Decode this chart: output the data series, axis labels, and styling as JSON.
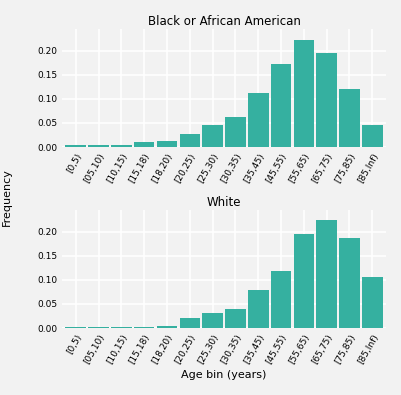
{
  "categories": [
    "[0,5)",
    "[05,10)",
    "[10,15)",
    "[15,18)",
    "[18,20)",
    "[20,25)",
    "[25,30)",
    "[30,35)",
    "[35,45)",
    "[45,55)",
    "[55,65)",
    "[65,75)",
    "[75,85)",
    "[85,Inf)"
  ],
  "black_values": [
    0.005,
    0.005,
    0.005,
    0.01,
    0.012,
    0.028,
    0.045,
    0.062,
    0.112,
    0.172,
    0.222,
    0.195,
    0.12,
    0.046
  ],
  "white_values": [
    0.003,
    0.003,
    0.002,
    0.003,
    0.005,
    0.02,
    0.032,
    0.04,
    0.078,
    0.118,
    0.195,
    0.225,
    0.188,
    0.105
  ],
  "bar_color": "#35b0a0",
  "background_color": "#f2f2f2",
  "grid_color": "#ffffff",
  "title_black": "Black or African American",
  "title_white": "White",
  "ylabel": "Frequency",
  "xlabel": "Age bin (years)",
  "ylim": [
    0.0,
    0.245
  ],
  "yticks": [
    0.0,
    0.05,
    0.1,
    0.15,
    0.2
  ],
  "title_fontsize": 8.5,
  "label_fontsize": 8,
  "tick_fontsize": 6.5
}
